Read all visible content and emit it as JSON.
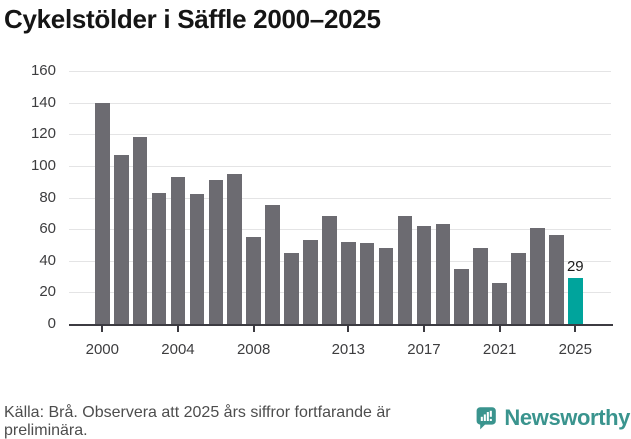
{
  "title": "Cykelstölder i Säffle 2000–2025",
  "chart_data": {
    "type": "bar",
    "title": "Cykelstölder i Säffle 2000–2025",
    "x": [
      2000,
      2001,
      2002,
      2003,
      2004,
      2005,
      2006,
      2007,
      2008,
      2009,
      2010,
      2011,
      2012,
      2013,
      2014,
      2015,
      2016,
      2017,
      2018,
      2019,
      2020,
      2021,
      2022,
      2023,
      2024,
      2025
    ],
    "values": [
      140,
      107,
      118,
      83,
      93,
      82,
      91,
      95,
      55,
      75,
      45,
      53,
      68,
      52,
      51,
      48,
      68,
      62,
      63,
      35,
      48,
      26,
      45,
      61,
      56,
      29
    ],
    "xlabel": "",
    "ylabel": "",
    "ylim": [
      0,
      160
    ],
    "yticks": [
      0,
      20,
      40,
      60,
      80,
      100,
      120,
      140,
      160
    ],
    "xticks": [
      2000,
      2004,
      2008,
      2013,
      2017,
      2021,
      2025
    ],
    "grid": "horizontal",
    "legend_position": "none",
    "highlight_index": 25,
    "highlight_label": "29",
    "bar_color": "#6c6b71",
    "highlight_color": "#00a49c",
    "gridline_color": "#e4e4e5",
    "axis_color": "#3c3b41"
  },
  "footer": {
    "source_note": "Källa: Brå. Observera att 2025 års siffror fortfarande är preliminära."
  },
  "branding": {
    "wordmark": "Newsworthy",
    "brand_color": "#3a948e",
    "icon": "newsworthy-chart-bubble-icon"
  }
}
